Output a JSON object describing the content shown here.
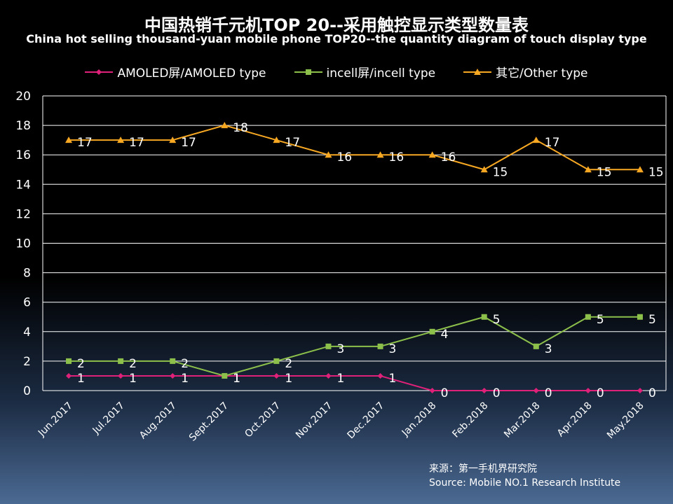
{
  "chart_data": {
    "type": "line",
    "title": "中国热销千元机TOP 20--采用触控显示类型数量表",
    "subtitle": "China hot selling thousand-yuan mobile phone TOP20--the quantity diagram of touch display type",
    "categories": [
      "Jun.2017",
      "Jul.2017",
      "Aug.2017",
      "Sept.2017",
      "Oct.2017",
      "Nov.2017",
      "Dec.2017",
      "Jan.2018",
      "Feb.2018",
      "Mar.2018",
      "Apr.2018",
      "May.2018"
    ],
    "series": [
      {
        "name": "AMOLED屏/AMOLED type",
        "color": "#e0217a",
        "marker": "diamond",
        "values": [
          1,
          1,
          1,
          1,
          1,
          1,
          1,
          0,
          0,
          0,
          0,
          0
        ]
      },
      {
        "name": "incell屏/incell type",
        "color": "#8cc04b",
        "marker": "square",
        "values": [
          2,
          2,
          2,
          1,
          2,
          3,
          3,
          4,
          5,
          3,
          5,
          5
        ]
      },
      {
        "name": "其它/Other type",
        "color": "#f7a823",
        "marker": "triangle",
        "values": [
          17,
          17,
          17,
          18,
          17,
          16,
          16,
          16,
          15,
          17,
          15,
          15
        ]
      }
    ],
    "ylim": [
      0,
      20
    ],
    "yticks": [
      0,
      2,
      4,
      6,
      8,
      10,
      12,
      14,
      16,
      18,
      20
    ],
    "xlabel": "",
    "ylabel": "",
    "grid": true,
    "legend": "top"
  },
  "source": {
    "line1": "来源：第一手机界研究院",
    "line2": "Source: Mobile NO.1 Research Institute"
  }
}
